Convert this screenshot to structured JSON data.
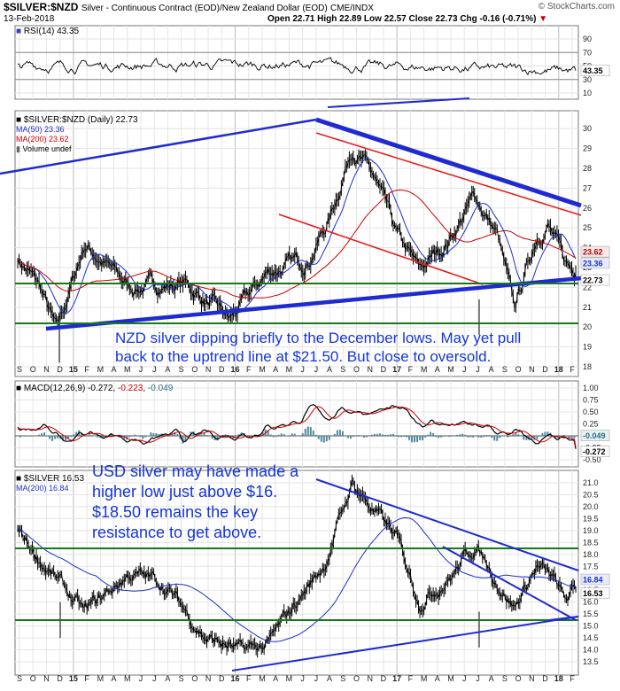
{
  "header": {
    "symbol": "$SILVER:$NZD",
    "description": "Silver - Continuous Contract (EOD)/New Zealand Dollar (EOD)",
    "exchange": "CME/INDX",
    "date": "13-Feb-2018",
    "ohlc": "Open 22.71  High 22.89  Low 22.57  Close 22.73  Chg -0.16 (-0.71%)",
    "watermark": "© StockCharts.com"
  },
  "rsi": {
    "label": "RSI(14)",
    "value": "43.35",
    "ticks": [
      "90",
      "70",
      "50",
      "30",
      "10"
    ]
  },
  "main": {
    "legend_title": "$SILVER:$NZD (Daily) 22.73",
    "ma50": "MA(50) 23.36",
    "ma200": "MA(200) 23.62",
    "volume": "Volume undef",
    "ticks": [
      "30",
      "29",
      "28",
      "27",
      "26",
      "25",
      "24",
      "23",
      "22",
      "21",
      "20",
      "19",
      "18"
    ],
    "last_labels": [
      "23.62",
      "23.36",
      "22.73"
    ],
    "annotation": "NZD silver dipping briefly to the December lows. May yet pull back to the uptrend line at $21.50. But close to oversold."
  },
  "macd": {
    "label": "MACD(12,26,9)",
    "values": [
      "-0.272",
      "-0.223",
      "-0.049"
    ],
    "ticks": [
      "1.00",
      "0.75",
      "0.50",
      "0.25",
      "0.00",
      "-0.25",
      "-0.50"
    ],
    "last_labels": [
      "-0.049",
      "-0.272"
    ]
  },
  "usd": {
    "legend_title": "$SILVER 16.53",
    "ma200": "MA(200) 16.84",
    "ticks": [
      "21.0",
      "20.5",
      "20.0",
      "19.5",
      "19.0",
      "18.5",
      "18.0",
      "17.5",
      "17.0",
      "16.5",
      "16.0",
      "15.5",
      "15.0",
      "14.5",
      "14.0",
      "13.5"
    ],
    "last_labels": [
      "16.84",
      "16.53"
    ],
    "annotation": "USD silver may have made a higher low just above $16. $18.50 remains the key resistance to get above."
  },
  "months": [
    "S",
    "O",
    "N",
    "D",
    "15",
    "F",
    "M",
    "A",
    "M",
    "J",
    "J",
    "A",
    "S",
    "O",
    "N",
    "D",
    "16",
    "F",
    "M",
    "A",
    "M",
    "J",
    "J",
    "A",
    "S",
    "O",
    "N",
    "D",
    "17",
    "F",
    "M",
    "A",
    "M",
    "J",
    "J",
    "A",
    "S",
    "O",
    "N",
    "D",
    "18",
    "F"
  ],
  "colors": {
    "ma50": "#1c2fc8",
    "ma200": "#cc0000",
    "trend_blue": "#1f2bd1",
    "channel_red": "#e81b1b",
    "support_green": "#157a15",
    "annotation": "#1535d8",
    "macd_hist": "#4f8a9e"
  },
  "chart_data": [
    {
      "type": "line",
      "title": "RSI(14)",
      "ylim": [
        10,
        90
      ],
      "series": [
        {
          "name": "RSI(14)",
          "values": [
            43.35
          ]
        }
      ]
    },
    {
      "type": "line",
      "title": "$SILVER:$NZD (Daily)",
      "x": [
        "2014-09",
        "2014-12",
        "2015-07",
        "2016-01",
        "2016-07",
        "2017-01",
        "2017-05",
        "2017-07",
        "2017-11",
        "2018-02"
      ],
      "series": [
        {
          "name": "$SILVER:$NZD",
          "values": [
            23.5,
            19.7,
            22.0,
            20.4,
            29.2,
            22.8,
            26.6,
            20.8,
            25.0,
            22.73
          ]
        },
        {
          "name": "MA(50)",
          "values": [
            null,
            null,
            null,
            null,
            null,
            null,
            null,
            null,
            null,
            23.36
          ]
        },
        {
          "name": "MA(200)",
          "values": [
            null,
            null,
            null,
            null,
            null,
            null,
            null,
            null,
            null,
            23.62
          ]
        }
      ],
      "ylim": [
        18,
        30
      ]
    },
    {
      "type": "line",
      "title": "MACD(12,26,9)",
      "series": [
        {
          "name": "MACD",
          "values": [
            -0.272
          ]
        },
        {
          "name": "Signal",
          "values": [
            -0.223
          ]
        },
        {
          "name": "Histogram",
          "values": [
            -0.049
          ]
        }
      ],
      "ylim": [
        -0.5,
        1.0
      ]
    },
    {
      "type": "line",
      "title": "$SILVER",
      "x": [
        "2014-09",
        "2015-05",
        "2015-12",
        "2016-07",
        "2016-11",
        "2017-02",
        "2017-07",
        "2017-09",
        "2017-12",
        "2018-02"
      ],
      "series": [
        {
          "name": "$SILVER",
          "values": [
            19.0,
            16.8,
            13.8,
            21.0,
            16.0,
            18.4,
            15.5,
            17.6,
            15.7,
            16.53
          ]
        },
        {
          "name": "MA(200)",
          "values": [
            null,
            null,
            null,
            null,
            null,
            null,
            null,
            null,
            null,
            16.84
          ]
        }
      ],
      "ylim": [
        13.5,
        21.0
      ]
    }
  ]
}
